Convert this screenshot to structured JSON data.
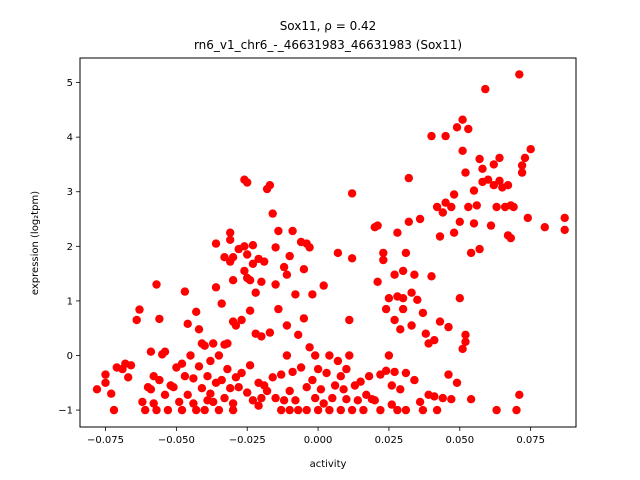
{
  "chart_data": {
    "type": "scatter",
    "title_line1": "Sox11, ρ = 0.42",
    "title_line2": "rn6_v1_chr6_-_46631983_46631983 (Sox11)",
    "xlabel": "activity",
    "ylabel": "expression (log₂tpm)",
    "xlim": [
      -0.084,
      0.091
    ],
    "ylim": [
      -1.31,
      5.45
    ],
    "xticks": [
      -0.075,
      -0.05,
      -0.025,
      0.0,
      0.025,
      0.05,
      0.075
    ],
    "xtick_labels": [
      "−0.075",
      "−0.050",
      "−0.025",
      "0.000",
      "0.025",
      "0.050",
      "0.075"
    ],
    "yticks": [
      -1,
      0,
      1,
      2,
      3,
      4,
      5
    ],
    "ytick_labels": [
      "−1",
      "0",
      "1",
      "2",
      "3",
      "4",
      "5"
    ],
    "marker_color": "#ff0000",
    "grid": false,
    "points": [
      [
        -0.078,
        -0.62
      ],
      [
        -0.075,
        -0.5
      ],
      [
        -0.075,
        -0.35
      ],
      [
        -0.073,
        -0.7
      ],
      [
        -0.072,
        -1.0
      ],
      [
        -0.071,
        -0.22
      ],
      [
        -0.069,
        -0.25
      ],
      [
        -0.068,
        -0.15
      ],
      [
        -0.067,
        -0.4
      ],
      [
        -0.066,
        -0.18
      ],
      [
        -0.064,
        0.65
      ],
      [
        -0.063,
        0.84
      ],
      [
        -0.062,
        -0.85
      ],
      [
        -0.061,
        -1.0
      ],
      [
        -0.06,
        -0.58
      ],
      [
        -0.059,
        0.07
      ],
      [
        -0.059,
        -0.62
      ],
      [
        -0.058,
        -0.38
      ],
      [
        -0.058,
        -0.88
      ],
      [
        -0.057,
        -1.0
      ],
      [
        -0.057,
        1.3
      ],
      [
        -0.056,
        -0.45
      ],
      [
        -0.056,
        0.67
      ],
      [
        -0.055,
        0.02
      ],
      [
        -0.054,
        0.07
      ],
      [
        -0.054,
        -0.72
      ],
      [
        -0.053,
        -1.0
      ],
      [
        -0.052,
        -0.55
      ],
      [
        -0.051,
        -0.58
      ],
      [
        -0.05,
        -0.22
      ],
      [
        -0.049,
        -0.85
      ],
      [
        -0.048,
        -1.0
      ],
      [
        -0.048,
        -0.15
      ],
      [
        -0.047,
        1.17
      ],
      [
        -0.047,
        -0.38
      ],
      [
        -0.046,
        0.58
      ],
      [
        -0.046,
        -0.72
      ],
      [
        -0.045,
        0.0
      ],
      [
        -0.044,
        -0.42
      ],
      [
        -0.044,
        -0.88
      ],
      [
        -0.043,
        0.8
      ],
      [
        -0.043,
        -1.0
      ],
      [
        -0.042,
        -0.2
      ],
      [
        -0.042,
        0.48
      ],
      [
        -0.041,
        -0.6
      ],
      [
        -0.041,
        0.22
      ],
      [
        -0.04,
        -1.0
      ],
      [
        -0.04,
        0.18
      ],
      [
        -0.039,
        -0.82
      ],
      [
        -0.039,
        -0.38
      ],
      [
        -0.038,
        -0.1
      ],
      [
        -0.038,
        -0.7
      ],
      [
        -0.037,
        -0.85
      ],
      [
        -0.037,
        0.22
      ],
      [
        -0.036,
        1.25
      ],
      [
        -0.036,
        2.05
      ],
      [
        -0.036,
        -0.5
      ],
      [
        -0.035,
        0.0
      ],
      [
        -0.035,
        -1.0
      ],
      [
        -0.034,
        -0.45
      ],
      [
        -0.034,
        0.95
      ],
      [
        -0.033,
        -0.78
      ],
      [
        -0.033,
        0.2
      ],
      [
        -0.033,
        1.8
      ],
      [
        -0.032,
        -0.25
      ],
      [
        -0.032,
        0.22
      ],
      [
        -0.031,
        -0.6
      ],
      [
        -0.031,
        1.72
      ],
      [
        -0.031,
        2.12
      ],
      [
        -0.031,
        2.25
      ],
      [
        -0.03,
        0.62
      ],
      [
        -0.03,
        1.38
      ],
      [
        -0.03,
        1.8
      ],
      [
        -0.03,
        -0.88
      ],
      [
        -0.03,
        -1.0
      ],
      [
        -0.029,
        0.55
      ],
      [
        -0.029,
        -0.4
      ],
      [
        -0.028,
        1.95
      ],
      [
        -0.028,
        -0.58
      ],
      [
        -0.027,
        0.65
      ],
      [
        -0.027,
        -0.32
      ],
      [
        -0.026,
        1.55
      ],
      [
        -0.026,
        3.22
      ],
      [
        -0.026,
        2.0
      ],
      [
        -0.025,
        3.17
      ],
      [
        -0.025,
        1.85
      ],
      [
        -0.025,
        1.42
      ],
      [
        -0.025,
        -0.68
      ],
      [
        -0.024,
        1.38
      ],
      [
        -0.024,
        0.82
      ],
      [
        -0.024,
        -0.18
      ],
      [
        -0.023,
        2.02
      ],
      [
        -0.023,
        1.68
      ],
      [
        -0.023,
        -0.82
      ],
      [
        -0.022,
        0.4
      ],
      [
        -0.022,
        1.15
      ],
      [
        -0.021,
        1.77
      ],
      [
        -0.021,
        -0.92
      ],
      [
        -0.021,
        -0.5
      ],
      [
        -0.02,
        -0.78
      ],
      [
        -0.02,
        1.35
      ],
      [
        -0.02,
        0.35
      ],
      [
        -0.019,
        -0.55
      ],
      [
        -0.019,
        1.72
      ],
      [
        -0.018,
        3.05
      ],
      [
        -0.018,
        -0.65
      ],
      [
        -0.017,
        3.12
      ],
      [
        -0.017,
        0.42
      ],
      [
        -0.016,
        2.6
      ],
      [
        -0.016,
        -0.4
      ],
      [
        -0.015,
        1.98
      ],
      [
        -0.015,
        1.3
      ],
      [
        -0.015,
        -0.78
      ],
      [
        -0.014,
        2.28
      ],
      [
        -0.014,
        0.85
      ],
      [
        -0.013,
        -0.35
      ],
      [
        -0.013,
        -1.0
      ],
      [
        -0.012,
        1.62
      ],
      [
        -0.012,
        -0.82
      ],
      [
        -0.011,
        1.48
      ],
      [
        -0.011,
        0.55
      ],
      [
        -0.011,
        0.0
      ],
      [
        -0.01,
        1.82
      ],
      [
        -0.01,
        -1.0
      ],
      [
        -0.01,
        -0.65
      ],
      [
        -0.009,
        2.28
      ],
      [
        -0.009,
        -0.3
      ],
      [
        -0.008,
        1.12
      ],
      [
        -0.008,
        -0.82
      ],
      [
        -0.007,
        0.38
      ],
      [
        -0.007,
        -1.0
      ],
      [
        -0.006,
        2.08
      ],
      [
        -0.006,
        -0.22
      ],
      [
        -0.005,
        1.58
      ],
      [
        -0.005,
        0.68
      ],
      [
        -0.004,
        2.05
      ],
      [
        -0.004,
        -0.58
      ],
      [
        -0.004,
        -1.0
      ],
      [
        -0.003,
        1.98
      ],
      [
        -0.003,
        0.15
      ],
      [
        -0.002,
        1.12
      ],
      [
        -0.002,
        -0.45
      ],
      [
        -0.001,
        0.0
      ],
      [
        -0.001,
        -0.78
      ],
      [
        0.0,
        -1.0
      ],
      [
        0.0,
        -0.25
      ],
      [
        0.001,
        -0.62
      ],
      [
        0.002,
        1.28
      ],
      [
        0.002,
        -0.88
      ],
      [
        0.003,
        -0.32
      ],
      [
        0.004,
        -1.0
      ],
      [
        0.004,
        0.0
      ],
      [
        0.005,
        -0.78
      ],
      [
        0.006,
        -0.55
      ],
      [
        0.007,
        1.88
      ],
      [
        0.007,
        -0.1
      ],
      [
        0.008,
        -0.38
      ],
      [
        0.008,
        -1.0
      ],
      [
        0.009,
        -0.62
      ],
      [
        0.01,
        -0.8
      ],
      [
        0.01,
        -0.25
      ],
      [
        0.011,
        0.0
      ],
      [
        0.011,
        0.65
      ],
      [
        0.012,
        -1.0
      ],
      [
        0.012,
        1.78
      ],
      [
        0.012,
        2.97
      ],
      [
        0.013,
        -0.55
      ],
      [
        0.014,
        -0.82
      ],
      [
        0.015,
        -0.48
      ],
      [
        0.016,
        -1.0
      ],
      [
        0.017,
        -0.72
      ],
      [
        0.018,
        -0.38
      ],
      [
        0.019,
        -0.8
      ],
      [
        0.02,
        -0.82
      ],
      [
        0.02,
        2.35
      ],
      [
        0.021,
        2.38
      ],
      [
        0.021,
        1.35
      ],
      [
        0.022,
        -0.35
      ],
      [
        0.022,
        -1.0
      ],
      [
        0.023,
        1.75
      ],
      [
        0.023,
        1.88
      ],
      [
        0.024,
        -0.28
      ],
      [
        0.024,
        0.85
      ],
      [
        0.025,
        0.0
      ],
      [
        0.025,
        1.05
      ],
      [
        0.026,
        -0.55
      ],
      [
        0.026,
        -0.9
      ],
      [
        0.027,
        -0.3
      ],
      [
        0.027,
        1.48
      ],
      [
        0.027,
        0.65
      ],
      [
        0.028,
        -1.0
      ],
      [
        0.028,
        1.08
      ],
      [
        0.028,
        2.25
      ],
      [
        0.029,
        0.48
      ],
      [
        0.029,
        -0.62
      ],
      [
        0.03,
        1.55
      ],
      [
        0.03,
        1.05
      ],
      [
        0.03,
        0.85
      ],
      [
        0.031,
        -0.32
      ],
      [
        0.031,
        1.88
      ],
      [
        0.031,
        -1.0
      ],
      [
        0.032,
        3.25
      ],
      [
        0.032,
        2.45
      ],
      [
        0.033,
        1.15
      ],
      [
        0.033,
        0.55
      ],
      [
        0.034,
        1.48
      ],
      [
        0.034,
        -0.45
      ],
      [
        0.035,
        1.02
      ],
      [
        0.036,
        2.5
      ],
      [
        0.036,
        -0.85
      ],
      [
        0.037,
        0.78
      ],
      [
        0.037,
        -1.0
      ],
      [
        0.038,
        0.4
      ],
      [
        0.039,
        0.22
      ],
      [
        0.039,
        -0.72
      ],
      [
        0.04,
        4.02
      ],
      [
        0.04,
        1.45
      ],
      [
        0.041,
        0.28
      ],
      [
        0.041,
        -0.75
      ],
      [
        0.042,
        2.72
      ],
      [
        0.042,
        -1.0
      ],
      [
        0.043,
        2.18
      ],
      [
        0.043,
        0.62
      ],
      [
        0.044,
        2.62
      ],
      [
        0.044,
        -0.78
      ],
      [
        0.045,
        2.8
      ],
      [
        0.045,
        4.02
      ],
      [
        0.046,
        0.52
      ],
      [
        0.046,
        -0.35
      ],
      [
        0.047,
        2.72
      ],
      [
        0.047,
        -0.8
      ],
      [
        0.048,
        2.25
      ],
      [
        0.048,
        2.95
      ],
      [
        0.049,
        4.18
      ],
      [
        0.049,
        -0.5
      ],
      [
        0.05,
        1.05
      ],
      [
        0.05,
        2.45
      ],
      [
        0.051,
        0.12
      ],
      [
        0.051,
        4.32
      ],
      [
        0.051,
        3.75
      ],
      [
        0.052,
        0.25
      ],
      [
        0.052,
        0.38
      ],
      [
        0.052,
        3.35
      ],
      [
        0.053,
        4.15
      ],
      [
        0.053,
        2.72
      ],
      [
        0.054,
        1.88
      ],
      [
        0.054,
        -0.8
      ],
      [
        0.055,
        3.02
      ],
      [
        0.055,
        2.42
      ],
      [
        0.056,
        2.75
      ],
      [
        0.057,
        1.95
      ],
      [
        0.057,
        3.6
      ],
      [
        0.058,
        3.42
      ],
      [
        0.058,
        3.18
      ],
      [
        0.059,
        4.88
      ],
      [
        0.06,
        3.22
      ],
      [
        0.061,
        2.38
      ],
      [
        0.062,
        3.12
      ],
      [
        0.062,
        3.5
      ],
      [
        0.063,
        2.72
      ],
      [
        0.063,
        -1.0
      ],
      [
        0.064,
        3.62
      ],
      [
        0.064,
        3.2
      ],
      [
        0.065,
        3.08
      ],
      [
        0.066,
        2.72
      ],
      [
        0.067,
        3.12
      ],
      [
        0.067,
        2.2
      ],
      [
        0.068,
        2.75
      ],
      [
        0.068,
        2.15
      ],
      [
        0.069,
        2.72
      ],
      [
        0.07,
        -1.0
      ],
      [
        0.071,
        -0.72
      ],
      [
        0.071,
        5.15
      ],
      [
        0.072,
        3.35
      ],
      [
        0.072,
        3.48
      ],
      [
        0.073,
        3.62
      ],
      [
        0.074,
        2.52
      ],
      [
        0.075,
        3.78
      ],
      [
        0.08,
        2.35
      ],
      [
        0.087,
        2.52
      ],
      [
        0.087,
        2.3
      ]
    ]
  }
}
